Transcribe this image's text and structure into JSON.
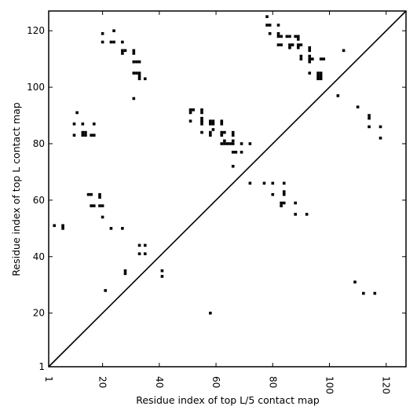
{
  "chart_data": {
    "type": "scatter",
    "title": "",
    "xlabel": "Residue index of top L/5 contact map",
    "ylabel": "Residue index of top L contact map",
    "xlim": [
      1,
      127
    ],
    "ylim": [
      1,
      127
    ],
    "x_ticks": [
      1,
      20,
      40,
      60,
      80,
      100,
      120
    ],
    "y_ticks": [
      1,
      20,
      40,
      60,
      80,
      100,
      120
    ],
    "x_tick_rotation_deg": 90,
    "grid": false,
    "legend": "none",
    "marker_color": "#000000",
    "diagonal_line": [
      [
        1,
        1
      ],
      [
        127,
        127
      ]
    ],
    "series": [
      {
        "points": [
          [
            20,
            119
          ],
          [
            20,
            116
          ],
          [
            24,
            120
          ],
          [
            23,
            116
          ],
          [
            24,
            116
          ],
          [
            27,
            116
          ],
          [
            27,
            113
          ],
          [
            27,
            112
          ],
          [
            28,
            113
          ],
          [
            31,
            113
          ],
          [
            31,
            112
          ],
          [
            31,
            109
          ],
          [
            32,
            109
          ],
          [
            33,
            109
          ],
          [
            31,
            105
          ],
          [
            32,
            105
          ],
          [
            33,
            105
          ],
          [
            33,
            104
          ],
          [
            33,
            103
          ],
          [
            35,
            103
          ],
          [
            31,
            96
          ],
          [
            78,
            125
          ],
          [
            78,
            122
          ],
          [
            79,
            122
          ],
          [
            79,
            119
          ],
          [
            82,
            122
          ],
          [
            82,
            119
          ],
          [
            82,
            118
          ],
          [
            83,
            118
          ],
          [
            82,
            115
          ],
          [
            83,
            115
          ],
          [
            85,
            118
          ],
          [
            86,
            118
          ],
          [
            86,
            115
          ],
          [
            86,
            114
          ],
          [
            87,
            115
          ],
          [
            88,
            118
          ],
          [
            89,
            118
          ],
          [
            89,
            117
          ],
          [
            89,
            115
          ],
          [
            90,
            115
          ],
          [
            89,
            114
          ],
          [
            90,
            111
          ],
          [
            90,
            110
          ],
          [
            93,
            114
          ],
          [
            93,
            113
          ],
          [
            93,
            111
          ],
          [
            93,
            110
          ],
          [
            93,
            109
          ],
          [
            94,
            110
          ],
          [
            93,
            105
          ],
          [
            96,
            105
          ],
          [
            96,
            104
          ],
          [
            97,
            105
          ],
          [
            96,
            103
          ],
          [
            97,
            104
          ],
          [
            97,
            103
          ],
          [
            97,
            110
          ],
          [
            98,
            110
          ],
          [
            105,
            113
          ],
          [
            11,
            91
          ],
          [
            10,
            87
          ],
          [
            10,
            83
          ],
          [
            13,
            87
          ],
          [
            13,
            84
          ],
          [
            13,
            83
          ],
          [
            14,
            84
          ],
          [
            14,
            83
          ],
          [
            17,
            87
          ],
          [
            16,
            83
          ],
          [
            17,
            83
          ],
          [
            51,
            92
          ],
          [
            52,
            92
          ],
          [
            51,
            91
          ],
          [
            51,
            88
          ],
          [
            55,
            92
          ],
          [
            55,
            91
          ],
          [
            55,
            89
          ],
          [
            55,
            88
          ],
          [
            55,
            87
          ],
          [
            55,
            84
          ],
          [
            58,
            88
          ],
          [
            58,
            87
          ],
          [
            59,
            88
          ],
          [
            59,
            87
          ],
          [
            59,
            85
          ],
          [
            58,
            84
          ],
          [
            58,
            83
          ],
          [
            62,
            88
          ],
          [
            62,
            87
          ],
          [
            62,
            84
          ],
          [
            62,
            83
          ],
          [
            63,
            84
          ],
          [
            63,
            81
          ],
          [
            62,
            80
          ],
          [
            63,
            80
          ],
          [
            64,
            80
          ],
          [
            65,
            80
          ],
          [
            66,
            81
          ],
          [
            66,
            80
          ],
          [
            66,
            84
          ],
          [
            66,
            83
          ],
          [
            66,
            77
          ],
          [
            67,
            77
          ],
          [
            69,
            77
          ],
          [
            69,
            80
          ],
          [
            72,
            80
          ],
          [
            66,
            72
          ],
          [
            103,
            97
          ],
          [
            110,
            93
          ],
          [
            114,
            90
          ],
          [
            114,
            89
          ],
          [
            114,
            86
          ],
          [
            118,
            86
          ],
          [
            118,
            82
          ],
          [
            15,
            62
          ],
          [
            16,
            62
          ],
          [
            19,
            62
          ],
          [
            19,
            61
          ],
          [
            16,
            58
          ],
          [
            17,
            58
          ],
          [
            19,
            58
          ],
          [
            20,
            58
          ],
          [
            20,
            54
          ],
          [
            23,
            50
          ],
          [
            27,
            50
          ],
          [
            3,
            51
          ],
          [
            6,
            51
          ],
          [
            6,
            50
          ],
          [
            33,
            44
          ],
          [
            35,
            44
          ],
          [
            33,
            41
          ],
          [
            35,
            41
          ],
          [
            28,
            35
          ],
          [
            28,
            34
          ],
          [
            41,
            35
          ],
          [
            41,
            33
          ],
          [
            21,
            28
          ],
          [
            72,
            66
          ],
          [
            77,
            66
          ],
          [
            80,
            66
          ],
          [
            84,
            66
          ],
          [
            80,
            62
          ],
          [
            84,
            63
          ],
          [
            84,
            62
          ],
          [
            83,
            59
          ],
          [
            83,
            58
          ],
          [
            84,
            59
          ],
          [
            88,
            59
          ],
          [
            88,
            55
          ],
          [
            92,
            55
          ],
          [
            109,
            31
          ],
          [
            112,
            27
          ],
          [
            116,
            27
          ],
          [
            58,
            20
          ]
        ]
      }
    ]
  }
}
